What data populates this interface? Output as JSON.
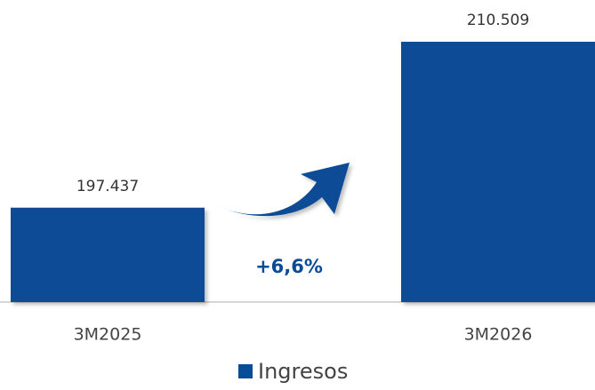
{
  "chart_data": {
    "type": "bar",
    "categories": [
      "3M2025",
      "3M2026"
    ],
    "series": [
      {
        "name": "Ingresos",
        "color": "#084b96",
        "values": [
          197437,
          210509
        ],
        "value_labels": [
          "197.437",
          "210.509"
        ]
      }
    ],
    "ylim": [
      190000,
      213800
    ],
    "annotations": [
      "+6,6%"
    ],
    "legend": "bottom"
  }
}
